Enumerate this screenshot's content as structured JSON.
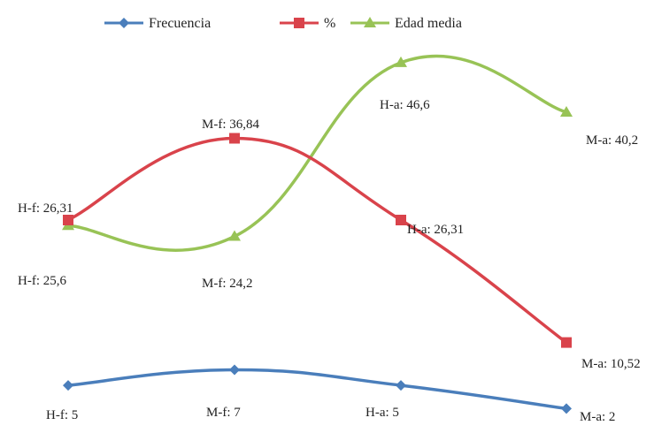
{
  "chart_data": {
    "type": "line",
    "categories": [
      "H-f",
      "M-f",
      "H-a",
      "M-a"
    ],
    "series": [
      {
        "name": "Frecuencia",
        "color": "#4a7ebb",
        "marker": "diamond",
        "values": [
          5,
          7,
          5,
          2
        ],
        "labels": [
          "H-f: 5",
          "M-f: 7",
          "H-a: 5",
          "M-a: 2"
        ]
      },
      {
        "name": "%",
        "color": "#d9434b",
        "marker": "square",
        "values": [
          26.31,
          36.84,
          26.31,
          10.52
        ],
        "labels": [
          "H-f: 26,31",
          "M-f: 36,84",
          "H-a: 26,31",
          "M-a: 10,52"
        ]
      },
      {
        "name": "Edad media",
        "color": "#98c356",
        "marker": "triangle",
        "values": [
          25.6,
          24.2,
          46.6,
          40.2
        ],
        "labels": [
          "H-f: 25,6",
          "M-f: 24,2",
          "H-a: 46,6",
          "M-a: 40,2"
        ]
      }
    ],
    "ylim": [
      0,
      50
    ],
    "grid": false,
    "legend": "top"
  }
}
